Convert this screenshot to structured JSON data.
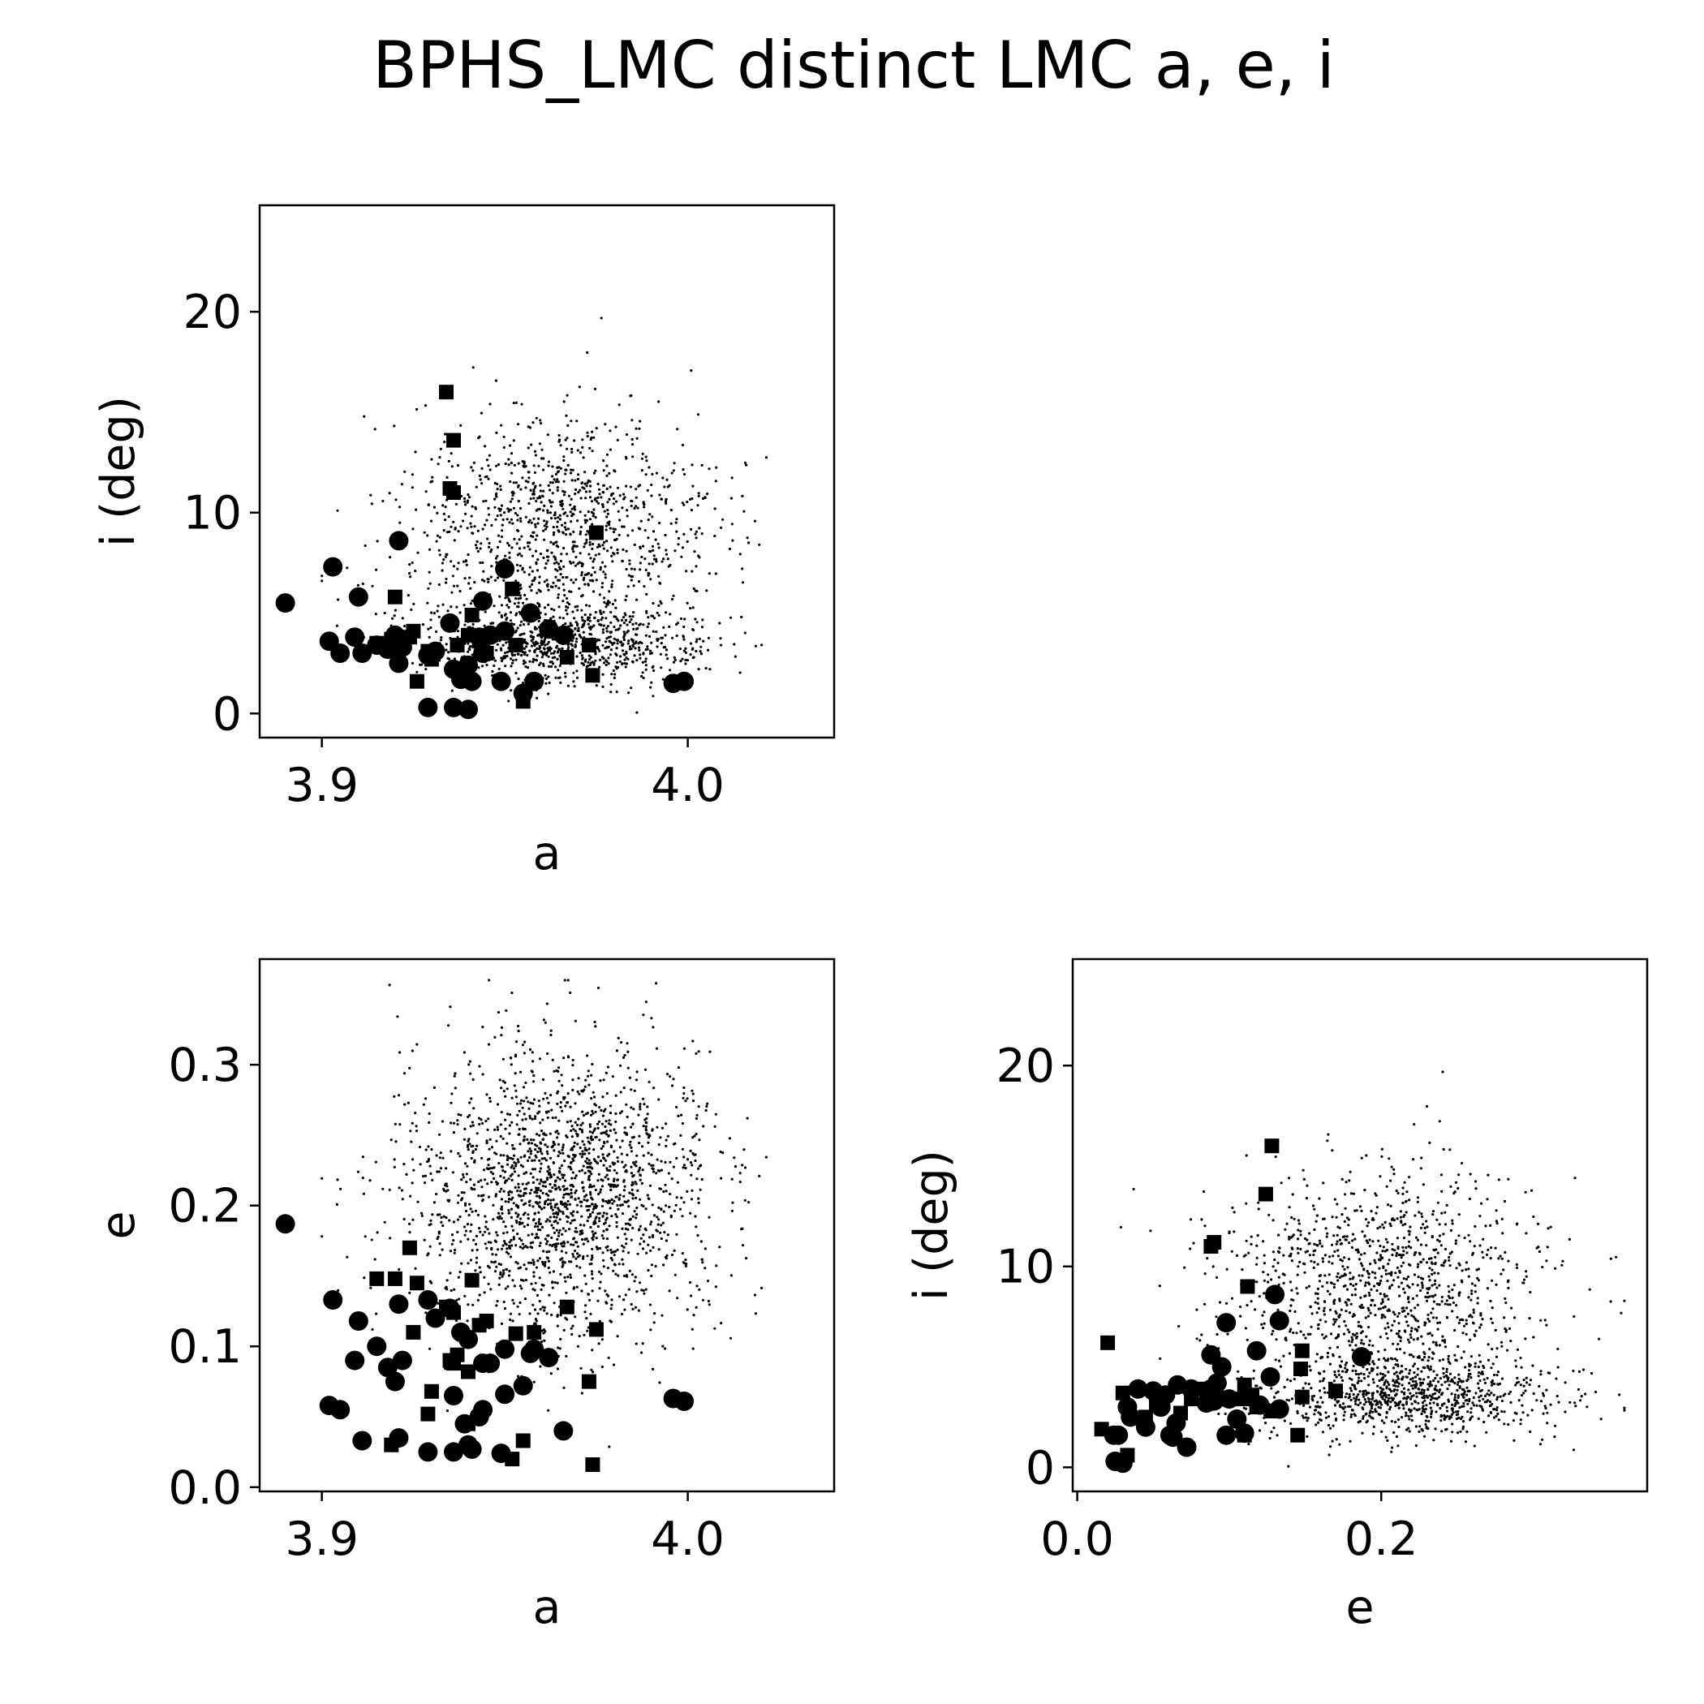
{
  "title": "BPHS_LMC distinct LMC a, e, i",
  "colors": {
    "marks": "#000000",
    "frame": "#000000",
    "background": "#ffffff"
  },
  "background_cloud": {
    "size": 2000,
    "a_range": [
      3.9,
      4.03
    ],
    "a_center": 3.965,
    "e_center_high": 0.2,
    "e_center_low": 0.08,
    "i_high_center": 9.0,
    "i_low_center": 3.5
  },
  "chart_data": [
    {
      "id": "a_i",
      "type": "scatter",
      "xlabel": "a",
      "ylabel": "i (deg)",
      "xvar": "a",
      "yvar": "i",
      "xlim": [
        3.883,
        4.04
      ],
      "ylim": [
        -1.2,
        25.3
      ],
      "xticks": [
        3.9,
        4.0
      ],
      "xticklabels": [
        "3.9",
        "4.0"
      ],
      "yticks": [
        0,
        10,
        20
      ],
      "yticklabels": [
        "0",
        "10",
        "20"
      ]
    },
    {
      "id": "a_e",
      "type": "scatter",
      "xlabel": "a",
      "ylabel": "e",
      "xvar": "a",
      "yvar": "e",
      "xlim": [
        3.883,
        4.04
      ],
      "ylim": [
        -0.003,
        0.375
      ],
      "xticks": [
        3.9,
        4.0
      ],
      "xticklabels": [
        "3.9",
        "4.0"
      ],
      "yticks": [
        0.0,
        0.1,
        0.2,
        0.3
      ],
      "yticklabels": [
        "0.0",
        "0.1",
        "0.2",
        "0.3"
      ]
    },
    {
      "id": "e_i",
      "type": "scatter",
      "xlabel": "e",
      "ylabel": "i (deg)",
      "xvar": "e",
      "yvar": "i",
      "xlim": [
        -0.003,
        0.375
      ],
      "ylim": [
        -1.2,
        25.3
      ],
      "xticks": [
        0.0,
        0.2
      ],
      "xticklabels": [
        "0.0",
        "0.2"
      ],
      "yticks": [
        0,
        10,
        20
      ],
      "yticklabels": [
        "0",
        "10",
        "20"
      ]
    }
  ],
  "objects_circles": [
    {
      "a": 3.89,
      "e": 0.187,
      "i": 5.5
    },
    {
      "a": 3.903,
      "e": 0.133,
      "i": 7.3
    },
    {
      "a": 3.921,
      "e": 0.13,
      "i": 8.6
    },
    {
      "a": 3.91,
      "e": 0.118,
      "i": 5.8
    },
    {
      "a": 3.95,
      "e": 0.098,
      "i": 7.2
    },
    {
      "a": 3.957,
      "e": 0.095,
      "i": 5.0
    },
    {
      "a": 3.944,
      "e": 0.088,
      "i": 5.6
    },
    {
      "a": 3.902,
      "e": 0.058,
      "i": 3.6
    },
    {
      "a": 3.905,
      "e": 0.055,
      "i": 3.0
    },
    {
      "a": 3.911,
      "e": 0.033,
      "i": 3.0
    },
    {
      "a": 3.909,
      "e": 0.09,
      "i": 3.8
    },
    {
      "a": 3.915,
      "e": 0.1,
      "i": 3.4
    },
    {
      "a": 3.918,
      "e": 0.085,
      "i": 3.2
    },
    {
      "a": 3.92,
      "e": 0.075,
      "i": 3.9
    },
    {
      "a": 3.922,
      "e": 0.09,
      "i": 3.3
    },
    {
      "a": 3.921,
      "e": 0.035,
      "i": 2.5
    },
    {
      "a": 3.929,
      "e": 0.133,
      "i": 2.9
    },
    {
      "a": 3.931,
      "e": 0.12,
      "i": 3.1
    },
    {
      "a": 3.935,
      "e": 0.127,
      "i": 4.5
    },
    {
      "a": 3.936,
      "e": 0.065,
      "i": 2.2
    },
    {
      "a": 3.938,
      "e": 0.11,
      "i": 1.7
    },
    {
      "a": 3.94,
      "e": 0.105,
      "i": 2.4
    },
    {
      "a": 3.941,
      "e": 0.027,
      "i": 1.6
    },
    {
      "a": 3.943,
      "e": 0.05,
      "i": 3.8
    },
    {
      "a": 3.946,
      "e": 0.088,
      "i": 3.9
    },
    {
      "a": 3.936,
      "e": 0.025,
      "i": 0.3
    },
    {
      "a": 3.929,
      "e": 0.025,
      "i": 0.3
    },
    {
      "a": 3.94,
      "e": 0.03,
      "i": 0.2
    },
    {
      "a": 3.949,
      "e": 0.024,
      "i": 1.6
    },
    {
      "a": 3.95,
      "e": 0.066,
      "i": 4.1
    },
    {
      "a": 3.955,
      "e": 0.072,
      "i": 1.0
    },
    {
      "a": 3.958,
      "e": 0.098,
      "i": 1.6
    },
    {
      "a": 3.962,
      "e": 0.092,
      "i": 4.2
    },
    {
      "a": 3.966,
      "e": 0.04,
      "i": 3.9
    },
    {
      "a": 3.996,
      "e": 0.063,
      "i": 1.5
    },
    {
      "a": 3.999,
      "e": 0.061,
      "i": 1.6
    },
    {
      "a": 3.944,
      "e": 0.055,
      "i": 3.0
    },
    {
      "a": 3.939,
      "e": 0.045,
      "i": 2.0
    }
  ],
  "objects_squares": [
    {
      "a": 3.934,
      "e": 0.128,
      "i": 16.0
    },
    {
      "a": 3.936,
      "e": 0.124,
      "i": 13.6
    },
    {
      "a": 3.935,
      "e": 0.09,
      "i": 11.2
    },
    {
      "a": 3.936,
      "e": 0.088,
      "i": 11.0
    },
    {
      "a": 3.975,
      "e": 0.112,
      "i": 9.0
    },
    {
      "a": 3.952,
      "e": 0.02,
      "i": 6.2
    },
    {
      "a": 3.92,
      "e": 0.148,
      "i": 5.8
    },
    {
      "a": 3.925,
      "e": 0.11,
      "i": 4.1
    },
    {
      "a": 3.915,
      "e": 0.148,
      "i": 3.5
    },
    {
      "a": 3.924,
      "e": 0.17,
      "i": 3.8
    },
    {
      "a": 3.926,
      "e": 0.145,
      "i": 1.6
    },
    {
      "a": 3.93,
      "e": 0.068,
      "i": 2.7
    },
    {
      "a": 3.929,
      "e": 0.052,
      "i": 3.1
    },
    {
      "a": 3.937,
      "e": 0.094,
      "i": 3.4
    },
    {
      "a": 3.94,
      "e": 0.082,
      "i": 3.9
    },
    {
      "a": 3.941,
      "e": 0.147,
      "i": 4.9
    },
    {
      "a": 3.943,
      "e": 0.115,
      "i": 3.6
    },
    {
      "a": 3.945,
      "e": 0.118,
      "i": 3.0
    },
    {
      "a": 3.953,
      "e": 0.109,
      "i": 3.4
    },
    {
      "a": 3.955,
      "e": 0.033,
      "i": 0.6
    },
    {
      "a": 3.958,
      "e": 0.11,
      "i": 1.6
    },
    {
      "a": 3.967,
      "e": 0.128,
      "i": 2.8
    },
    {
      "a": 3.973,
      "e": 0.075,
      "i": 3.4
    },
    {
      "a": 3.974,
      "e": 0.016,
      "i": 1.9
    },
    {
      "a": 3.919,
      "e": 0.03,
      "i": 3.7
    },
    {
      "a": 3.94,
      "e": 0.045,
      "i": 2.5
    }
  ]
}
